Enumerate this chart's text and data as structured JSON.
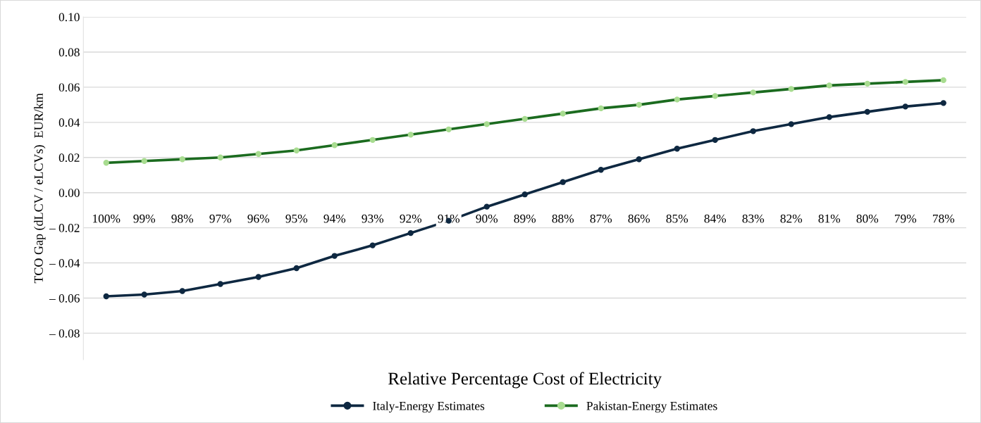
{
  "chart_data": {
    "type": "line",
    "xlabel": "Relative Percentage Cost of Electricity",
    "ylabel": "TCO Gap (dLCV / eLCVs)  EUR/km",
    "categories": [
      "100%",
      "99%",
      "98%",
      "97%",
      "96%",
      "95%",
      "94%",
      "93%",
      "92%",
      "91%",
      "90%",
      "89%",
      "88%",
      "87%",
      "86%",
      "85%",
      "84%",
      "83%",
      "82%",
      "81%",
      "80%",
      "79%",
      "78%"
    ],
    "series": [
      {
        "name": "Italy-Energy Estimates",
        "color": "#0e2841",
        "values": [
          -0.059,
          -0.058,
          -0.056,
          -0.052,
          -0.048,
          -0.043,
          -0.036,
          -0.03,
          -0.023,
          -0.016,
          -0.008,
          -0.001,
          0.006,
          0.013,
          0.019,
          0.025,
          0.03,
          0.035,
          0.039,
          0.043,
          0.046,
          0.049,
          0.051
        ]
      },
      {
        "name": "Pakistan-Energy Estimates",
        "color": "#1b6b1f",
        "colors": [
          "#a8dc90",
          "#a8dc90",
          "#a8dc90",
          "#a8dc90",
          "#a8dc90",
          "#a8dc90",
          "#a8dc90",
          "#a8dc90",
          "#a8dc90",
          "#a8dc90",
          "#a8dc90",
          "#a8dc90",
          "#a8dc90",
          "#a8dc90",
          "#a8dc90",
          "#a8dc90",
          "#a8dc90",
          "#a8dc90",
          "#a8dc90",
          "#a8dc90",
          "#a8dc90",
          "#a8dc90",
          "#a8dc90"
        ],
        "values": [
          0.017,
          0.018,
          0.019,
          0.02,
          0.022,
          0.024,
          0.027,
          0.03,
          0.033,
          0.036,
          0.039,
          0.042,
          0.045,
          0.048,
          0.05,
          0.053,
          0.055,
          0.057,
          0.059,
          0.061,
          0.062,
          0.063,
          0.064
        ]
      }
    ],
    "ylim": [
      -0.095,
      0.1
    ],
    "yticks": [
      {
        "value": -0.08,
        "label": "– 0.08"
      },
      {
        "value": -0.06,
        "label": "– 0.06"
      },
      {
        "value": -0.04,
        "label": "– 0.04"
      },
      {
        "value": -0.02,
        "label": "– 0.02"
      },
      {
        "value": 0.0,
        "label": "0.00"
      },
      {
        "value": 0.02,
        "label": "0.02"
      },
      {
        "value": 0.04,
        "label": "0.04"
      },
      {
        "value": 0.06,
        "label": "0.06"
      },
      {
        "value": 0.08,
        "label": "0.08"
      },
      {
        "value": 0.1,
        "label": "0.10"
      }
    ],
    "grid": "y",
    "legend": "bottom",
    "marker": "circle",
    "line_style": "solid"
  }
}
